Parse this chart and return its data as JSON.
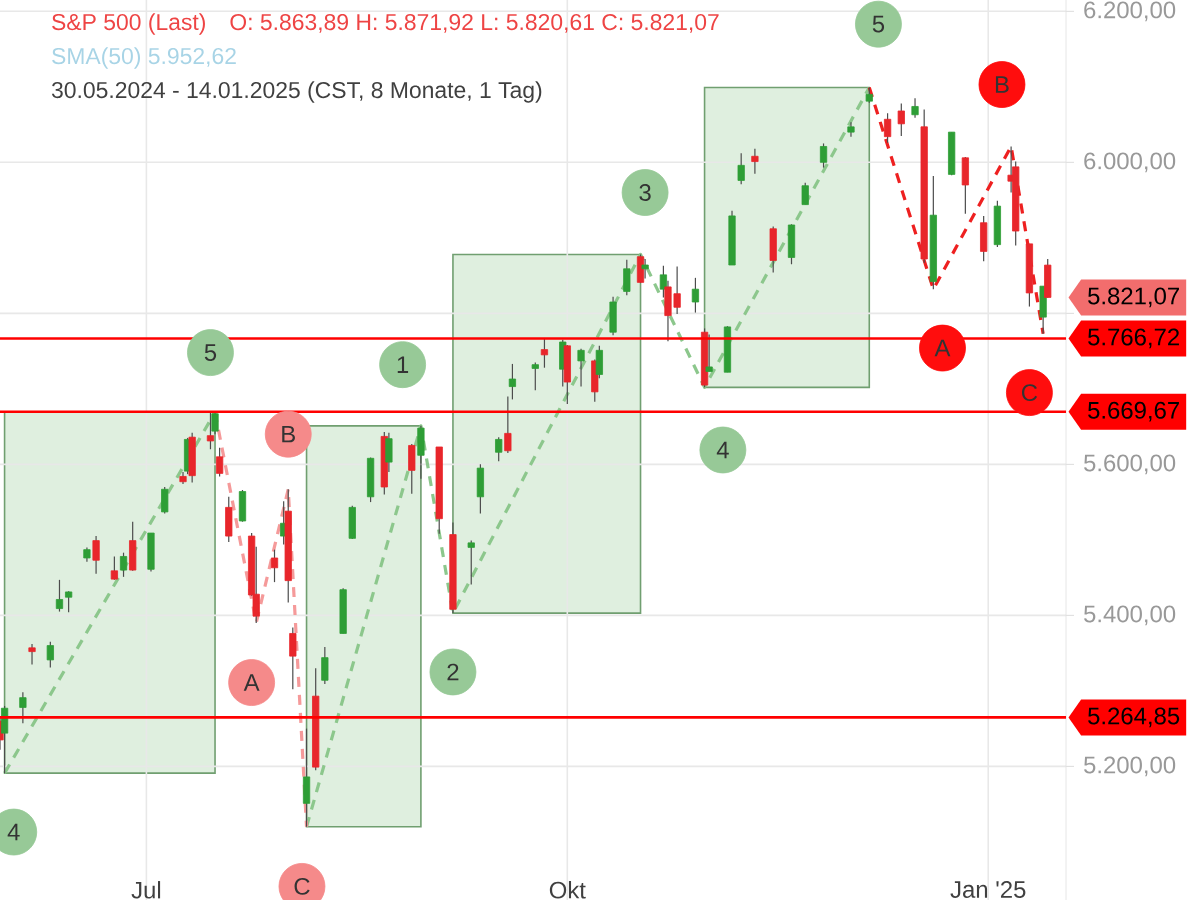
{
  "chart_data": {
    "type": "candlestick",
    "title": "S&P 500 (Last)",
    "subtitle": "30.05.2024 - 14.01.2025 (CST, 8 Monate, 1 Tag)",
    "x": [
      "2024-05-30",
      "2024-05-31",
      "2024-06-04",
      "2024-06-06",
      "2024-06-10",
      "2024-06-12",
      "2024-06-14",
      "2024-06-18",
      "2024-06-20",
      "2024-06-24",
      "2024-06-26",
      "2024-06-28",
      "2024-07-02",
      "2024-07-05",
      "2024-07-09",
      "2024-07-10",
      "2024-07-11",
      "2024-07-15",
      "2024-07-16",
      "2024-07-17",
      "2024-07-19",
      "2024-07-22",
      "2024-07-24",
      "2024-07-25",
      "2024-07-29",
      "2024-07-31",
      "2024-08-01",
      "2024-08-02",
      "2024-08-05",
      "2024-08-07",
      "2024-08-09",
      "2024-08-13",
      "2024-08-15",
      "2024-08-19",
      "2024-08-22",
      "2024-08-23",
      "2024-08-28",
      "2024-08-30",
      "2024-09-03",
      "2024-09-06",
      "2024-09-10",
      "2024-09-12",
      "2024-09-16",
      "2024-09-18",
      "2024-09-19",
      "2024-09-24",
      "2024-09-26",
      "2024-09-30",
      "2024-10-01",
      "2024-10-04",
      "2024-10-07",
      "2024-10-08",
      "2024-10-11",
      "2024-10-14",
      "2024-10-17",
      "2024-10-18",
      "2024-10-22",
      "2024-10-23",
      "2024-10-25",
      "2024-10-29",
      "2024-10-31",
      "2024-11-01",
      "2024-11-05",
      "2024-11-06",
      "2024-11-08",
      "2024-11-11",
      "2024-11-15",
      "2024-11-19",
      "2024-11-22",
      "2024-11-26",
      "2024-12-02",
      "2024-12-06",
      "2024-12-10",
      "2024-12-13",
      "2024-12-16",
      "2024-12-18",
      "2024-12-20",
      "2024-12-24",
      "2024-12-27",
      "2024-12-31",
      "2025-01-03",
      "2025-01-06",
      "2025-01-07",
      "2025-01-10",
      "2025-01-13",
      "2025-01-14"
    ],
    "ohlc": [
      [
        5260,
        5265,
        5222,
        5235
      ],
      [
        5244,
        5280,
        5191,
        5277
      ],
      [
        5278,
        5298,
        5257,
        5291
      ],
      [
        5357,
        5362,
        5335,
        5352
      ],
      [
        5341,
        5365,
        5331,
        5360
      ],
      [
        5409,
        5447,
        5405,
        5421
      ],
      [
        5424,
        5432,
        5404,
        5431
      ],
      [
        5476,
        5490,
        5471,
        5487
      ],
      [
        5499,
        5505,
        5455,
        5473
      ],
      [
        5459,
        5478,
        5447,
        5448
      ],
      [
        5460,
        5483,
        5451,
        5478
      ],
      [
        5499,
        5524,
        5459,
        5460
      ],
      [
        5461,
        5509,
        5458,
        5509
      ],
      [
        5537,
        5570,
        5535,
        5567
      ],
      [
        5584,
        5590,
        5574,
        5577
      ],
      [
        5591,
        5635,
        5587,
        5633
      ],
      [
        5636,
        5642,
        5576,
        5585
      ],
      [
        5638,
        5670,
        5620,
        5631
      ],
      [
        5644,
        5669,
        5640,
        5667
      ],
      [
        5610,
        5622,
        5584,
        5588
      ],
      [
        5543,
        5557,
        5497,
        5505
      ],
      [
        5525,
        5566,
        5524,
        5564
      ],
      [
        5505,
        5509,
        5426,
        5427
      ],
      [
        5428,
        5491,
        5390,
        5399
      ],
      [
        5476,
        5487,
        5444,
        5463
      ],
      [
        5505,
        5551,
        5494,
        5522
      ],
      [
        5538,
        5567,
        5417,
        5446
      ],
      [
        5376,
        5384,
        5302,
        5346
      ],
      [
        5151,
        5250,
        5120,
        5186
      ],
      [
        5293,
        5330,
        5195,
        5199
      ],
      [
        5314,
        5358,
        5309,
        5344
      ],
      [
        5376,
        5436,
        5376,
        5434
      ],
      [
        5502,
        5545,
        5501,
        5543
      ],
      [
        5557,
        5609,
        5550,
        5608
      ],
      [
        5637,
        5643,
        5560,
        5570
      ],
      [
        5603,
        5642,
        5590,
        5634
      ],
      [
        5625,
        5627,
        5561,
        5592
      ],
      [
        5612,
        5651,
        5581,
        5648
      ],
      [
        5623,
        5623,
        5508,
        5528
      ],
      [
        5507,
        5523,
        5403,
        5408
      ],
      [
        5490,
        5499,
        5441,
        5496
      ],
      [
        5557,
        5600,
        5535,
        5595
      ],
      [
        5616,
        5636,
        5604,
        5633
      ],
      [
        5641,
        5690,
        5615,
        5618
      ],
      [
        5703,
        5733,
        5686,
        5713
      ],
      [
        5727,
        5735,
        5698,
        5732
      ],
      [
        5752,
        5767,
        5728,
        5745
      ],
      [
        5726,
        5765,
        5703,
        5762
      ],
      [
        5757,
        5758,
        5680,
        5709
      ],
      [
        5737,
        5753,
        5703,
        5751
      ],
      [
        5737,
        5739,
        5683,
        5696
      ],
      [
        5719,
        5757,
        5714,
        5751
      ],
      [
        5775,
        5822,
        5771,
        5815
      ],
      [
        5829,
        5871,
        5824,
        5859
      ],
      [
        5875,
        5878,
        5840,
        5841
      ],
      [
        5859,
        5872,
        5846,
        5864
      ],
      [
        5832,
        5863,
        5821,
        5851
      ],
      [
        5835,
        5843,
        5763,
        5797
      ],
      [
        5826,
        5862,
        5799,
        5808
      ],
      [
        5815,
        5847,
        5801,
        5832
      ],
      [
        5775,
        5780,
        5702,
        5705
      ],
      [
        5723,
        5772,
        5723,
        5729
      ],
      [
        5722,
        5783,
        5722,
        5782
      ],
      [
        5864,
        5936,
        5864,
        5929
      ],
      [
        5976,
        6012,
        5971,
        5996
      ],
      [
        6008,
        6018,
        5985,
        6001
      ],
      [
        5912,
        5915,
        5854,
        5870
      ],
      [
        5874,
        5918,
        5865,
        5917
      ],
      [
        5944,
        5973,
        5944,
        5969
      ],
      [
        6000,
        6025,
        5993,
        6021
      ],
      [
        6040,
        6053,
        6034,
        6047
      ],
      [
        6081,
        6099,
        6079,
        6090
      ],
      [
        6057,
        6065,
        6026,
        6034
      ],
      [
        6068,
        6078,
        6035,
        6051
      ],
      [
        6063,
        6085,
        6059,
        6074
      ],
      [
        6047,
        6070,
        5867,
        5872
      ],
      [
        5842,
        5982,
        5832,
        5930
      ],
      [
        5984,
        6040,
        5983,
        6040
      ],
      [
        6006,
        6007,
        5932,
        5970
      ],
      [
        5920,
        5929,
        5869,
        5882
      ],
      [
        5891,
        5949,
        5888,
        5942
      ],
      [
        5983,
        6021,
        5960,
        5975
      ],
      [
        5994,
        6001,
        5890,
        5909
      ],
      [
        5892,
        5892,
        5809,
        5827
      ],
      [
        5795,
        5836,
        5773,
        5836
      ],
      [
        5863.89,
        5871.92,
        5820.61,
        5821.07
      ]
    ],
    "xlim": [
      "2024-05-30",
      "2025-01-18"
    ],
    "ylim": [
      5023,
      6215
    ],
    "xticks": [
      {
        "value": "2024-07-01",
        "label": "Jul"
      },
      {
        "value": "2024-10-01",
        "label": "Okt"
      },
      {
        "value": "2025-01-01",
        "label": "Jan '25"
      }
    ],
    "yticks": [
      {
        "value": 5200,
        "label": "5.200,00"
      },
      {
        "value": 5400,
        "label": "5.400,00"
      },
      {
        "value": 5600,
        "label": "5.600,00"
      },
      {
        "value": 5800,
        "label": null
      },
      {
        "value": 6000,
        "label": "6.000,00"
      },
      {
        "value": 6200,
        "label": "6.200,00"
      }
    ],
    "grid": true,
    "series": [
      {
        "type": "line",
        "line_style": "dashed",
        "marker": "none",
        "color": "#8cc78c",
        "x": [
          "2024-05-31",
          "2024-07-16"
        ],
        "values": [
          5191,
          5669
        ]
      },
      {
        "type": "line",
        "line_style": "dashed",
        "marker": "none",
        "color": "#8cc78c",
        "x": [
          "2024-08-05",
          "2024-08-30",
          "2024-09-06",
          "2024-10-17",
          "2024-10-31",
          "2024-12-06"
        ],
        "values": [
          5120,
          5651,
          5403,
          5878,
          5702,
          6099
        ]
      },
      {
        "type": "line",
        "line_style": "dashed",
        "marker": "none",
        "color": "#f59a9a",
        "x": [
          "2024-07-16",
          "2024-07-25",
          "2024-08-01",
          "2024-08-05"
        ],
        "values": [
          5669,
          5390,
          5567,
          5120
        ]
      },
      {
        "type": "line",
        "line_style": "dashed",
        "marker": "none",
        "color": "#ee2020",
        "x": [
          "2024-12-06",
          "2024-12-20",
          "2025-01-06",
          "2025-01-13"
        ],
        "values": [
          6099,
          5832,
          6021,
          5773
        ]
      },
      {
        "type": "scatter",
        "marker": "circle",
        "color": "#97c997",
        "x": [
          "2024-06-02",
          "2024-07-15",
          "2024-08-26",
          "2024-09-06",
          "2024-10-18",
          "2024-11-04",
          "2024-12-08"
        ],
        "values": [
          5113,
          5748,
          5732,
          5325,
          5960,
          5619,
          6183
        ]
      },
      {
        "type": "scatter",
        "marker": "circle",
        "color": "#f58a8a",
        "x": [
          "2024-08-01",
          "2024-07-24",
          "2024-08-04"
        ],
        "values": [
          5640,
          5311,
          5041
        ]
      },
      {
        "type": "scatter",
        "marker": "circle",
        "color": "#ff0d0d",
        "x": [
          "2024-12-22",
          "2025-01-04",
          "2025-01-10"
        ],
        "values": [
          5754,
          6103,
          5695
        ]
      }
    ],
    "ref_lines": [
      {
        "axis": "y",
        "value": 5766.72,
        "label": "5.766,72",
        "color": "#ff0000"
      },
      {
        "axis": "y",
        "value": 5669.67,
        "label": "5.669,67",
        "color": "#ff0000"
      },
      {
        "axis": "y",
        "value": 5264.85,
        "label": "5.264,85",
        "color": "#ff0000"
      }
    ],
    "annotations": [
      "O: 5.863,89  H: 5.871,92  L: 5.820,61  C: 5.821,07",
      "SMA(50)  5.952,62",
      {
        "text": "5.821,07",
        "x": "2025-01-14",
        "y": 5821.07
      },
      {
        "text": "4",
        "x": "2024-06-02",
        "y": 5113
      },
      {
        "text": "5",
        "x": "2024-07-15",
        "y": 5748
      },
      {
        "text": "1",
        "x": "2024-08-26",
        "y": 5732
      },
      {
        "text": "2",
        "x": "2024-09-06",
        "y": 5325
      },
      {
        "text": "3",
        "x": "2024-10-18",
        "y": 5960
      },
      {
        "text": "4",
        "x": "2024-11-04",
        "y": 5619
      },
      {
        "text": "5",
        "x": "2024-12-08",
        "y": 6183
      },
      {
        "text": "B",
        "x": "2024-08-01",
        "y": 5640
      },
      {
        "text": "A",
        "x": "2024-07-24",
        "y": 5311
      },
      {
        "text": "C",
        "x": "2024-08-04",
        "y": 5041
      },
      {
        "text": "A",
        "x": "2024-12-22",
        "y": 5754
      },
      {
        "text": "B",
        "x": "2025-01-04",
        "y": 6103
      },
      {
        "text": "C",
        "x": "2025-01-10",
        "y": 5695
      }
    ]
  }
}
